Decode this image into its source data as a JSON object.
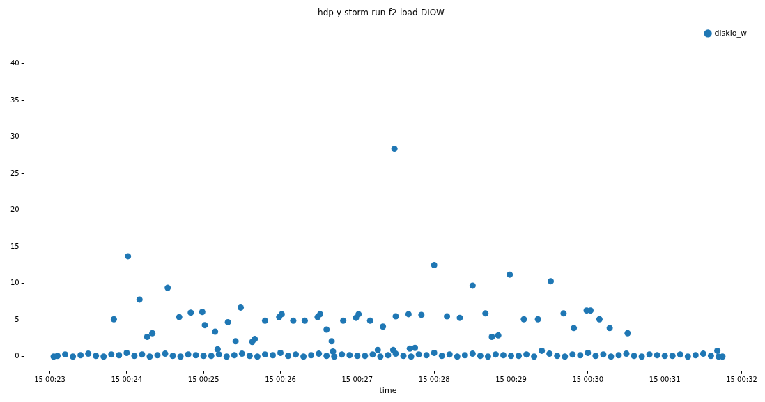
{
  "chart_data": {
    "type": "scatter",
    "title": "hdp-y-storm-run-f2-load-DIOW",
    "xlabel": "time",
    "legend": "top right",
    "marker": "circle",
    "grid": false,
    "xlim": [
      "2000-01-15T00:22:40",
      "2000-01-15T00:32:08"
    ],
    "ylim": [
      -2.0,
      42.7
    ],
    "xticks": [
      {
        "value": "2000-01-15T00:23",
        "label": "15 00:23"
      },
      {
        "value": "2000-01-15T00:24",
        "label": "15 00:24"
      },
      {
        "value": "2000-01-15T00:25",
        "label": "15 00:25"
      },
      {
        "value": "2000-01-15T00:26",
        "label": "15 00:26"
      },
      {
        "value": "2000-01-15T00:27",
        "label": "15 00:27"
      },
      {
        "value": "2000-01-15T00:28",
        "label": "15 00:28"
      },
      {
        "value": "2000-01-15T00:29",
        "label": "15 00:29"
      },
      {
        "value": "2000-01-15T00:30",
        "label": "15 00:30"
      },
      {
        "value": "2000-01-15T00:31",
        "label": "15 00:31"
      },
      {
        "value": "2000-01-15T00:32",
        "label": "15 00:32"
      }
    ],
    "yticks": [
      0,
      5,
      10,
      15,
      20,
      25,
      30,
      35,
      40
    ],
    "series": [
      {
        "name": "diskio_w",
        "color": "#1f77b4",
        "x": [
          "2000-01-15T00:23:03",
          "2000-01-15T00:23:06",
          "2000-01-15T00:23:12",
          "2000-01-15T00:23:18",
          "2000-01-15T00:23:24",
          "2000-01-15T00:23:30",
          "2000-01-15T00:23:36",
          "2000-01-15T00:23:42",
          "2000-01-15T00:23:48",
          "2000-01-15T00:23:54",
          "2000-01-15T00:24:00",
          "2000-01-15T00:24:06",
          "2000-01-15T00:24:12",
          "2000-01-15T00:24:18",
          "2000-01-15T00:24:24",
          "2000-01-15T00:24:30",
          "2000-01-15T00:24:36",
          "2000-01-15T00:24:42",
          "2000-01-15T00:24:48",
          "2000-01-15T00:24:54",
          "2000-01-15T00:25:00",
          "2000-01-15T00:25:06",
          "2000-01-15T00:25:12",
          "2000-01-15T00:25:18",
          "2000-01-15T00:25:24",
          "2000-01-15T00:25:30",
          "2000-01-15T00:25:36",
          "2000-01-15T00:25:42",
          "2000-01-15T00:25:48",
          "2000-01-15T00:25:54",
          "2000-01-15T00:26:00",
          "2000-01-15T00:26:06",
          "2000-01-15T00:26:12",
          "2000-01-15T00:26:18",
          "2000-01-15T00:26:24",
          "2000-01-15T00:26:30",
          "2000-01-15T00:26:36",
          "2000-01-15T00:26:42",
          "2000-01-15T00:26:48",
          "2000-01-15T00:26:54",
          "2000-01-15T00:27:00",
          "2000-01-15T00:27:06",
          "2000-01-15T00:27:12",
          "2000-01-15T00:27:18",
          "2000-01-15T00:27:24",
          "2000-01-15T00:27:30",
          "2000-01-15T00:27:36",
          "2000-01-15T00:27:42",
          "2000-01-15T00:27:48",
          "2000-01-15T00:27:54",
          "2000-01-15T00:28:00",
          "2000-01-15T00:28:06",
          "2000-01-15T00:28:12",
          "2000-01-15T00:28:18",
          "2000-01-15T00:28:24",
          "2000-01-15T00:28:30",
          "2000-01-15T00:28:36",
          "2000-01-15T00:28:42",
          "2000-01-15T00:28:48",
          "2000-01-15T00:28:54",
          "2000-01-15T00:29:00",
          "2000-01-15T00:29:06",
          "2000-01-15T00:29:12",
          "2000-01-15T00:29:18",
          "2000-01-15T00:29:24",
          "2000-01-15T00:29:30",
          "2000-01-15T00:29:36",
          "2000-01-15T00:29:42",
          "2000-01-15T00:29:48",
          "2000-01-15T00:29:54",
          "2000-01-15T00:30:00",
          "2000-01-15T00:30:06",
          "2000-01-15T00:30:12",
          "2000-01-15T00:30:18",
          "2000-01-15T00:30:24",
          "2000-01-15T00:30:30",
          "2000-01-15T00:30:36",
          "2000-01-15T00:30:42",
          "2000-01-15T00:30:48",
          "2000-01-15T00:30:54",
          "2000-01-15T00:31:00",
          "2000-01-15T00:31:06",
          "2000-01-15T00:31:12",
          "2000-01-15T00:31:18",
          "2000-01-15T00:31:24",
          "2000-01-15T00:31:30",
          "2000-01-15T00:31:36",
          "2000-01-15T00:31:42",
          "2000-01-15T00:31:45",
          "2000-01-15T00:23:50",
          "2000-01-15T00:24:01",
          "2000-01-15T00:24:10",
          "2000-01-15T00:24:16",
          "2000-01-15T00:24:20",
          "2000-01-15T00:24:32",
          "2000-01-15T00:24:41",
          "2000-01-15T00:24:50",
          "2000-01-15T00:24:59",
          "2000-01-15T00:25:01",
          "2000-01-15T00:25:09",
          "2000-01-15T00:25:11",
          "2000-01-15T00:25:19",
          "2000-01-15T00:25:25",
          "2000-01-15T00:25:29",
          "2000-01-15T00:25:38",
          "2000-01-15T00:25:40",
          "2000-01-15T00:25:48",
          "2000-01-15T00:25:59",
          "2000-01-15T00:26:01",
          "2000-01-15T00:26:10",
          "2000-01-15T00:26:19",
          "2000-01-15T00:26:29",
          "2000-01-15T00:26:31",
          "2000-01-15T00:26:36",
          "2000-01-15T00:26:40",
          "2000-01-15T00:26:41",
          "2000-01-15T00:26:49",
          "2000-01-15T00:26:59",
          "2000-01-15T00:27:01",
          "2000-01-15T00:27:10",
          "2000-01-15T00:27:16",
          "2000-01-15T00:27:20",
          "2000-01-15T00:27:29",
          "2000-01-15T00:27:30",
          "2000-01-15T00:27:28",
          "2000-01-15T00:27:40",
          "2000-01-15T00:27:41",
          "2000-01-15T00:27:45",
          "2000-01-15T00:27:50",
          "2000-01-15T00:28:00",
          "2000-01-15T00:28:10",
          "2000-01-15T00:28:20",
          "2000-01-15T00:28:30",
          "2000-01-15T00:28:40",
          "2000-01-15T00:28:45",
          "2000-01-15T00:28:50",
          "2000-01-15T00:28:59",
          "2000-01-15T00:29:10",
          "2000-01-15T00:29:21",
          "2000-01-15T00:29:31",
          "2000-01-15T00:29:41",
          "2000-01-15T00:29:49",
          "2000-01-15T00:29:59",
          "2000-01-15T00:30:02",
          "2000-01-15T00:30:09",
          "2000-01-15T00:30:17",
          "2000-01-15T00:30:31",
          "2000-01-15T00:31:41"
        ],
        "values": [
          0.0,
          0.1,
          0.3,
          0.0,
          0.2,
          0.4,
          0.1,
          0.0,
          0.3,
          0.2,
          0.5,
          0.1,
          0.3,
          0.0,
          0.2,
          0.4,
          0.1,
          0.0,
          0.3,
          0.2,
          0.1,
          0.1,
          0.3,
          0.0,
          0.2,
          0.4,
          0.1,
          0.0,
          0.3,
          0.2,
          0.5,
          0.1,
          0.3,
          0.0,
          0.2,
          0.4,
          0.1,
          0.0,
          0.3,
          0.2,
          0.1,
          0.1,
          0.3,
          0.0,
          0.2,
          0.4,
          0.1,
          0.0,
          0.3,
          0.2,
          0.5,
          0.1,
          0.3,
          0.0,
          0.2,
          0.4,
          0.1,
          0.0,
          0.3,
          0.2,
          0.1,
          0.1,
          0.3,
          0.0,
          0.8,
          0.4,
          0.1,
          0.0,
          0.3,
          0.2,
          0.5,
          0.1,
          0.3,
          0.0,
          0.2,
          0.4,
          0.1,
          0.0,
          0.3,
          0.2,
          0.1,
          0.1,
          0.3,
          0.0,
          0.2,
          0.4,
          0.1,
          0.0,
          0.0,
          5.1,
          13.7,
          7.8,
          2.7,
          3.2,
          9.4,
          5.4,
          6.0,
          6.1,
          4.3,
          3.4,
          1.0,
          4.7,
          2.1,
          6.7,
          2.0,
          2.4,
          4.9,
          5.4,
          5.8,
          4.9,
          4.9,
          5.4,
          5.8,
          3.7,
          2.1,
          0.7,
          4.9,
          5.3,
          5.8,
          4.9,
          0.9,
          4.1,
          28.4,
          5.5,
          0.9,
          5.8,
          1.1,
          1.2,
          5.7,
          12.5,
          5.5,
          5.3,
          9.7,
          5.9,
          2.7,
          2.9,
          11.2,
          5.1,
          5.1,
          10.3,
          5.9,
          3.9,
          6.3,
          6.3,
          5.1,
          3.9,
          3.2,
          0.8
        ]
      }
    ]
  }
}
